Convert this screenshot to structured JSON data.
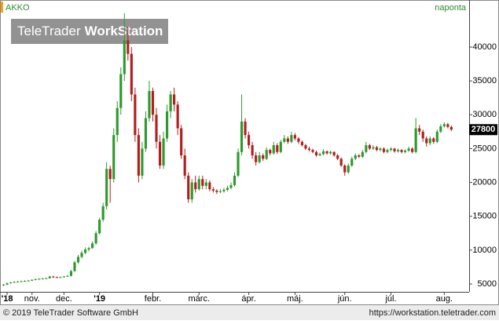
{
  "header": {
    "symbol": "AKKO",
    "interval": "naponta",
    "watermark": [
      "TeleTrader",
      "WorkStation"
    ]
  },
  "footer": {
    "copyright": "© 2019 TeleTrader Software GmbH",
    "url": "https://workstation.teletrader.com"
  },
  "chart_data": {
    "type": "candlestick",
    "up_color": "#2e9a2e",
    "down_color": "#b21f1f",
    "ylim": [
      3840,
      46720
    ],
    "yticks": [
      5000,
      10000,
      15000,
      20000,
      25000,
      30000,
      35000,
      40000
    ],
    "xlim": [
      -1,
      131
    ],
    "xticks": [
      {
        "value": 1,
        "label": "'18"
      },
      {
        "value": 8,
        "label": "nov."
      },
      {
        "value": 17,
        "label": "dec."
      },
      {
        "value": 27,
        "label": "'19"
      },
      {
        "value": 42,
        "label": "febr."
      },
      {
        "value": 55,
        "label": "márc."
      },
      {
        "value": 69,
        "label": "ápr."
      },
      {
        "value": 82,
        "label": "máj."
      },
      {
        "value": 96,
        "label": "jún."
      },
      {
        "value": 109,
        "label": "júl."
      },
      {
        "value": 124,
        "label": "aug."
      }
    ],
    "ohlc": [
      [
        4800,
        5000,
        4700,
        4900
      ],
      [
        4900,
        5200,
        4850,
        5100
      ],
      [
        5100,
        5300,
        5050,
        5200
      ],
      [
        5200,
        5400,
        5150,
        5300
      ],
      [
        5300,
        5450,
        5250,
        5350
      ],
      [
        5350,
        5500,
        5300,
        5400
      ],
      [
        5400,
        5550,
        5350,
        5450
      ],
      [
        5450,
        5600,
        5400,
        5500
      ],
      [
        5500,
        5700,
        5450,
        5600
      ],
      [
        5600,
        5800,
        5550,
        5700
      ],
      [
        5700,
        5850,
        5650,
        5750
      ],
      [
        5750,
        5900,
        5700,
        5800
      ],
      [
        5800,
        5950,
        5750,
        5850
      ],
      [
        5850,
        6200,
        5800,
        6100
      ],
      [
        6100,
        6200,
        5900,
        6000
      ],
      [
        6000,
        6100,
        5900,
        5950
      ],
      [
        5950,
        6100,
        5900,
        6000
      ],
      [
        6000,
        6200,
        5950,
        6100
      ],
      [
        6100,
        6300,
        6050,
        6200
      ],
      [
        6200,
        7100,
        6100,
        6900
      ],
      [
        6900,
        8400,
        6800,
        8200
      ],
      [
        8200,
        9300,
        8000,
        9000
      ],
      [
        9000,
        9900,
        8800,
        9600
      ],
      [
        9600,
        10400,
        9400,
        10100
      ],
      [
        10100,
        10500,
        9800,
        10300
      ],
      [
        10300,
        11300,
        10200,
        11000
      ],
      [
        11000,
        12800,
        10800,
        12500
      ],
      [
        12500,
        14800,
        12300,
        14500
      ],
      [
        14500,
        17000,
        14200,
        16500
      ],
      [
        16500,
        23000,
        16000,
        22000
      ],
      [
        22000,
        22500,
        17000,
        20500
      ],
      [
        20500,
        28000,
        20000,
        27000
      ],
      [
        27000,
        32000,
        26000,
        31000
      ],
      [
        31000,
        37000,
        30000,
        36000
      ],
      [
        36000,
        45000,
        35000,
        41000
      ],
      [
        41000,
        43000,
        38000,
        39000
      ],
      [
        39000,
        40000,
        32000,
        33000
      ],
      [
        33000,
        34000,
        26000,
        27000
      ],
      [
        27000,
        28000,
        20000,
        21000
      ],
      [
        21000,
        26000,
        20500,
        25000
      ],
      [
        25000,
        30500,
        24500,
        29500
      ],
      [
        29500,
        35000,
        29000,
        33500
      ],
      [
        33500,
        34000,
        29000,
        30000
      ],
      [
        30000,
        31000,
        25000,
        26000
      ],
      [
        26000,
        27000,
        22000,
        22500
      ],
      [
        22500,
        27500,
        22000,
        26500
      ],
      [
        26500,
        31500,
        26000,
        30500
      ],
      [
        30500,
        33500,
        29500,
        33000
      ],
      [
        33000,
        34000,
        30500,
        31500
      ],
      [
        31500,
        32000,
        27000,
        28000
      ],
      [
        28000,
        28500,
        23500,
        24000
      ],
      [
        24000,
        25000,
        20500,
        21000
      ],
      [
        21000,
        21500,
        17000,
        17500
      ],
      [
        17500,
        20500,
        17000,
        20000
      ],
      [
        20000,
        21000,
        18500,
        19000
      ],
      [
        19000,
        21000,
        18800,
        20500
      ],
      [
        20500,
        21000,
        19000,
        19500
      ],
      [
        19500,
        20500,
        19000,
        20000
      ],
      [
        20000,
        20300,
        18700,
        19000
      ],
      [
        19000,
        19300,
        18500,
        18800
      ],
      [
        18800,
        19000,
        18300,
        18600
      ],
      [
        18600,
        19000,
        18400,
        18700
      ],
      [
        18700,
        19200,
        18500,
        18900
      ],
      [
        18900,
        19500,
        18700,
        19200
      ],
      [
        19200,
        20000,
        19000,
        19600
      ],
      [
        19600,
        21500,
        19400,
        21000
      ],
      [
        21000,
        25000,
        20800,
        24500
      ],
      [
        24500,
        33000,
        24000,
        29000
      ],
      [
        29000,
        29500,
        26500,
        27000
      ],
      [
        27000,
        27500,
        25000,
        25500
      ],
      [
        25500,
        26000,
        23500,
        24000
      ],
      [
        24000,
        24500,
        22500,
        23000
      ],
      [
        23000,
        24500,
        22800,
        24000
      ],
      [
        24000,
        24300,
        23200,
        23500
      ],
      [
        23500,
        25200,
        23300,
        24800
      ],
      [
        24800,
        25000,
        24000,
        24300
      ],
      [
        24300,
        26000,
        24100,
        25500
      ],
      [
        25500,
        25800,
        24200,
        24500
      ],
      [
        24500,
        26300,
        24300,
        26000
      ],
      [
        26000,
        27000,
        25800,
        26500
      ],
      [
        26500,
        26800,
        25700,
        26000
      ],
      [
        26000,
        27500,
        25800,
        27000
      ],
      [
        27000,
        27300,
        26200,
        26500
      ],
      [
        26500,
        26700,
        25700,
        26000
      ],
      [
        26000,
        26200,
        25300,
        25500
      ],
      [
        25500,
        25700,
        24800,
        25000
      ],
      [
        25000,
        25300,
        24600,
        24800
      ],
      [
        24800,
        25000,
        24300,
        24500
      ],
      [
        24500,
        24700,
        23800,
        24000
      ],
      [
        24000,
        24400,
        23900,
        24200
      ],
      [
        24200,
        24900,
        24000,
        24600
      ],
      [
        24600,
        24700,
        24100,
        24300
      ],
      [
        24300,
        24700,
        24100,
        24500
      ],
      [
        24500,
        24600,
        23800,
        24000
      ],
      [
        24000,
        24200,
        23300,
        23500
      ],
      [
        23500,
        23700,
        22300,
        22500
      ],
      [
        22500,
        22700,
        21000,
        21500
      ],
      [
        21500,
        22800,
        21300,
        22500
      ],
      [
        22500,
        23800,
        22300,
        23500
      ],
      [
        23500,
        24300,
        23300,
        24000
      ],
      [
        24000,
        24200,
        23600,
        23800
      ],
      [
        23800,
        24800,
        23600,
        24500
      ],
      [
        24500,
        26000,
        24300,
        25500
      ],
      [
        25500,
        25700,
        24800,
        25000
      ],
      [
        25000,
        25500,
        24800,
        25200
      ],
      [
        25200,
        25400,
        24600,
        24800
      ],
      [
        24800,
        25200,
        24600,
        25000
      ],
      [
        25000,
        25200,
        24300,
        24500
      ],
      [
        24500,
        25000,
        24300,
        24800
      ],
      [
        24800,
        25200,
        24600,
        25000
      ],
      [
        25000,
        25100,
        24400,
        24600
      ],
      [
        24600,
        25000,
        24400,
        24800
      ],
      [
        24800,
        24900,
        24300,
        24500
      ],
      [
        24500,
        24900,
        24300,
        24700
      ],
      [
        24700,
        25300,
        24500,
        25000
      ],
      [
        25000,
        25200,
        24300,
        24500
      ],
      [
        24500,
        29500,
        24300,
        28000
      ],
      [
        28000,
        28500,
        27000,
        27500
      ],
      [
        27500,
        27800,
        26000,
        26500
      ],
      [
        26500,
        26800,
        25300,
        25800
      ],
      [
        25800,
        26800,
        25500,
        26500
      ],
      [
        26500,
        26700,
        25700,
        26000
      ],
      [
        26000,
        27800,
        25800,
        27500
      ],
      [
        27500,
        28600,
        27300,
        28300
      ],
      [
        28300,
        28900,
        28100,
        28600
      ],
      [
        28600,
        28800,
        28000,
        28200
      ],
      [
        28200,
        28400,
        27600,
        27800
      ]
    ]
  }
}
